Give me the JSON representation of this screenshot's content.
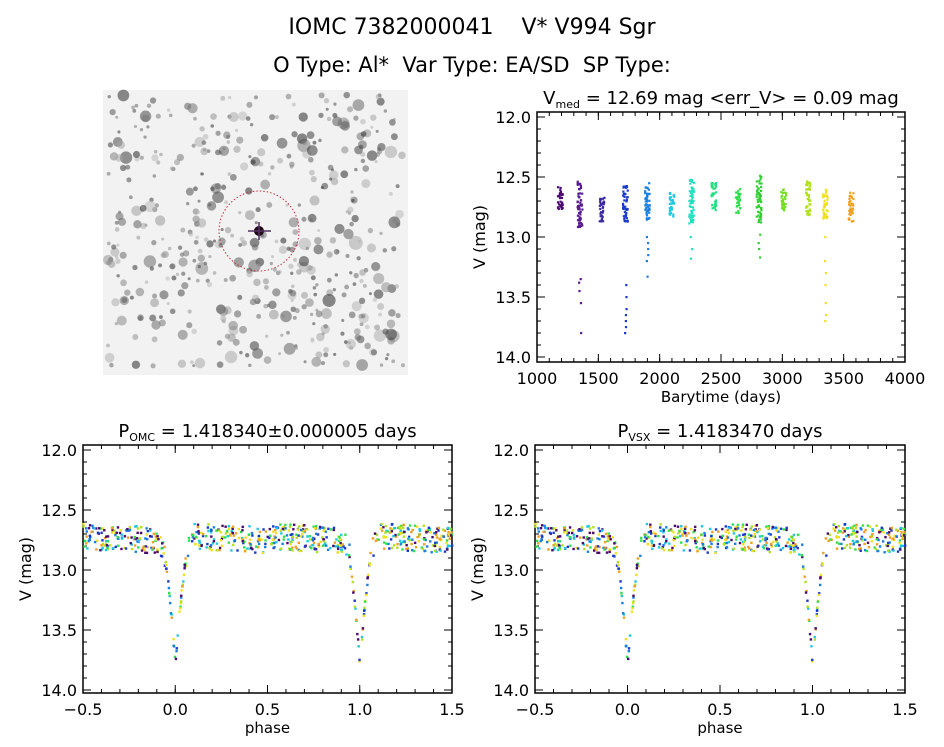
{
  "header": {
    "title": "IOMC 7382000041    V* V994 Sgr",
    "subtitle": "O Type: Al*  Var Type: EA/SD  SP Type:"
  },
  "chart_data": [
    {
      "type": "scatter",
      "title_prefix": "V",
      "title_sub": "med",
      "title_rest": " = 12.69 mag <err_V> = 0.09 mag",
      "xlabel": "Barytime (days)",
      "ylabel": "V (mag)",
      "xlim": [
        1000,
        4000
      ],
      "ylim": [
        14.0,
        12.0
      ],
      "xticks": [
        "1000",
        "1500",
        "2000",
        "2500",
        "3000",
        "3500",
        "4000"
      ],
      "yticks": [
        "12.0",
        "12.5",
        "13.0",
        "13.5",
        "14.0"
      ],
      "seasons": [
        {
          "t": 1190,
          "vmin": 12.58,
          "vmax": 12.77,
          "color": "#4b0a6e",
          "extra": []
        },
        {
          "t": 1350,
          "vmin": 12.52,
          "vmax": 12.93,
          "color": "#5a1a90",
          "extra": [
            13.35,
            13.38,
            13.45,
            13.55,
            13.8
          ]
        },
        {
          "t": 1530,
          "vmin": 12.67,
          "vmax": 12.87,
          "color": "#3a2aa0",
          "extra": []
        },
        {
          "t": 1720,
          "vmin": 12.57,
          "vmax": 12.88,
          "color": "#1a3ac8",
          "extra": [
            13.4,
            13.5,
            13.6,
            13.65,
            13.7,
            13.75,
            13.8
          ]
        },
        {
          "t": 1900,
          "vmin": 12.55,
          "vmax": 12.87,
          "color": "#1a80e0",
          "extra": [
            13.0,
            13.05,
            13.1,
            13.15,
            13.2,
            13.33
          ]
        },
        {
          "t": 2100,
          "vmin": 12.62,
          "vmax": 12.83,
          "color": "#20c8e0",
          "extra": []
        },
        {
          "t": 2260,
          "vmin": 12.52,
          "vmax": 12.9,
          "color": "#20e0c0",
          "extra": [
            13.0,
            13.1,
            13.18
          ]
        },
        {
          "t": 2440,
          "vmin": 12.55,
          "vmax": 12.78,
          "color": "#20e080",
          "extra": []
        },
        {
          "t": 2640,
          "vmin": 12.6,
          "vmax": 12.8,
          "color": "#30e050",
          "extra": []
        },
        {
          "t": 2810,
          "vmin": 12.48,
          "vmax": 12.88,
          "color": "#30d030",
          "extra": [
            12.98,
            13.05,
            13.1,
            13.17
          ]
        },
        {
          "t": 3010,
          "vmin": 12.6,
          "vmax": 12.78,
          "color": "#70e020",
          "extra": []
        },
        {
          "t": 3210,
          "vmin": 12.53,
          "vmax": 12.82,
          "color": "#b0e020",
          "extra": []
        },
        {
          "t": 3350,
          "vmin": 12.6,
          "vmax": 12.85,
          "color": "#f0e020",
          "extra": [
            13.0,
            13.2,
            13.3,
            13.4,
            13.55,
            13.65,
            13.7
          ]
        },
        {
          "t": 3560,
          "vmin": 12.63,
          "vmax": 12.87,
          "color": "#f0a020",
          "extra": []
        }
      ]
    },
    {
      "type": "scatter",
      "title_prefix": "P",
      "title_sub": "OMC",
      "title_rest": " = 1.418340±0.000005 days",
      "xlabel": "phase",
      "ylabel": "V (mag)",
      "xlim": [
        -0.5,
        1.5
      ],
      "ylim": [
        14.0,
        12.0
      ],
      "xticks": [
        "-0.5",
        "0.0",
        "0.5",
        "1.0",
        "1.5"
      ],
      "yticks": [
        "12.0",
        "12.5",
        "13.0",
        "13.5",
        "14.0"
      ],
      "curve": [
        [
          -0.5,
          12.72
        ],
        [
          -0.1,
          12.75
        ],
        [
          -0.06,
          12.85
        ],
        [
          -0.04,
          13.1
        ],
        [
          -0.02,
          13.4
        ],
        [
          0,
          13.8
        ],
        [
          0.02,
          13.4
        ],
        [
          0.04,
          13.1
        ],
        [
          0.06,
          12.85
        ],
        [
          0.1,
          12.72
        ],
        [
          0.5,
          12.75
        ]
      ]
    },
    {
      "type": "scatter",
      "title_prefix": "P",
      "title_sub": "VSX",
      "title_rest": " = 1.4183470 days",
      "xlabel": "phase",
      "ylabel": "V (mag)",
      "xlim": [
        -0.5,
        1.5
      ],
      "ylim": [
        14.0,
        12.0
      ],
      "xticks": [
        "-0.5",
        "0.0",
        "0.5",
        "1.0",
        "1.5"
      ],
      "yticks": [
        "12.0",
        "12.5",
        "13.0",
        "13.5",
        "14.0"
      ],
      "curve": [
        [
          -0.5,
          12.72
        ],
        [
          -0.1,
          12.75
        ],
        [
          -0.06,
          12.85
        ],
        [
          -0.04,
          13.1
        ],
        [
          -0.02,
          13.4
        ],
        [
          0,
          13.8
        ],
        [
          0.02,
          13.4
        ],
        [
          0.04,
          13.1
        ],
        [
          0.06,
          12.85
        ],
        [
          0.1,
          12.72
        ],
        [
          0.5,
          12.75
        ]
      ]
    }
  ],
  "colors": [
    "#4b0a6e",
    "#1a3ac8",
    "#1a80e0",
    "#20c8e0",
    "#30e050",
    "#b0e020",
    "#f0e020",
    "#f0a020"
  ]
}
